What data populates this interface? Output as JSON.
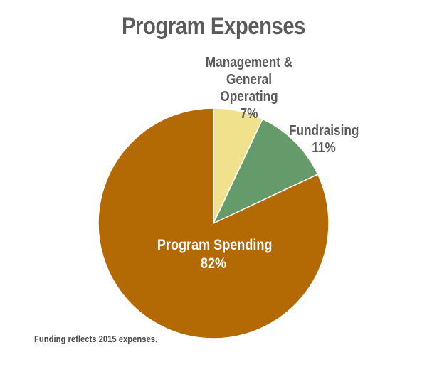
{
  "chart_data": {
    "type": "pie",
    "title": "Program Expenses",
    "slices": [
      {
        "label": "Management &\nGeneral Operating",
        "value": 7,
        "value_label": "7%",
        "color": "#f0e28c"
      },
      {
        "label": "Fundraising",
        "value": 11,
        "value_label": "11%",
        "color": "#659b6b"
      },
      {
        "label": "Program Spending",
        "value": 82,
        "value_label": "82%",
        "color": "#b36a04"
      }
    ],
    "start": "12 o'clock",
    "direction": "clockwise",
    "footnote": "Funding reflects 2015 expenses."
  }
}
